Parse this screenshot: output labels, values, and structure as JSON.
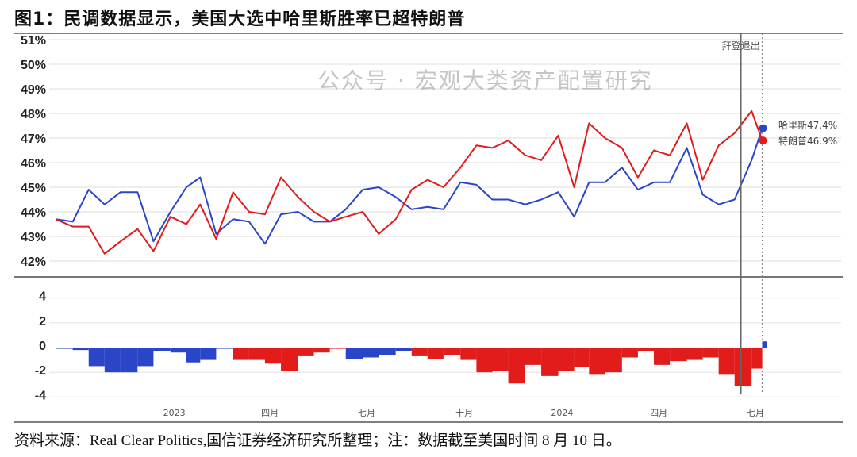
{
  "title": "图1：民调数据显示，美国大选中哈里斯胜率已超特朗普",
  "source": "资料来源：Real Clear Politics,国信证券经济研究所整理；注：数据截至美国时间 8 月 10 日。",
  "watermark": "公众号 · 宏观大类资产配置研究",
  "chart_data": [
    {
      "type": "line",
      "ylim": [
        42,
        51
      ],
      "yticks": [
        "51%",
        "50%",
        "49%",
        "48%",
        "47%",
        "46%",
        "45%",
        "44%",
        "43%",
        "42%"
      ],
      "ytick_values": [
        51,
        50,
        49,
        48,
        47,
        46,
        45,
        44,
        43,
        42
      ],
      "grid": true,
      "colors": {
        "harris": "#2b45c8",
        "trump": "#e21b1b"
      },
      "x": [
        "2022-10-15",
        "2022-10-31",
        "2022-11-15",
        "2022-11-30",
        "2022-12-15",
        "2022-12-31",
        "2023-01-15",
        "2023-01-31",
        "2023-02-15",
        "2023-02-28",
        "2023-03-15",
        "2023-03-31",
        "2023-04-15",
        "2023-04-30",
        "2023-05-15",
        "2023-05-31",
        "2023-06-15",
        "2023-06-30",
        "2023-07-15",
        "2023-07-31",
        "2023-08-15",
        "2023-08-31",
        "2023-09-15",
        "2023-09-30",
        "2023-10-15",
        "2023-10-31",
        "2023-11-15",
        "2023-11-30",
        "2023-12-15",
        "2023-12-31",
        "2024-01-15",
        "2024-01-31",
        "2024-02-15",
        "2024-02-29",
        "2024-03-15",
        "2024-03-31",
        "2024-04-15",
        "2024-04-30",
        "2024-05-15",
        "2024-05-31",
        "2024-06-15",
        "2024-06-30",
        "2024-07-15",
        "2024-07-31",
        "2024-08-10"
      ],
      "series": [
        {
          "key": "harris",
          "values": [
            43.7,
            43.6,
            44.9,
            44.3,
            44.8,
            44.8,
            42.8,
            44.0,
            45.0,
            45.4,
            43.1,
            43.7,
            43.6,
            42.7,
            43.9,
            44.0,
            43.6,
            43.6,
            44.1,
            44.9,
            45.0,
            44.6,
            44.1,
            44.2,
            44.1,
            45.2,
            45.1,
            44.5,
            44.5,
            44.3,
            44.5,
            44.8,
            43.8,
            45.2,
            45.2,
            45.8,
            44.9,
            45.2,
            45.2,
            46.6,
            44.7,
            44.3,
            44.5,
            46.1,
            47.4
          ]
        },
        {
          "key": "trump",
          "values": [
            43.7,
            43.4,
            43.4,
            42.3,
            42.8,
            43.3,
            42.4,
            43.8,
            43.5,
            44.3,
            42.9,
            44.8,
            44.0,
            43.9,
            45.4,
            44.6,
            44.0,
            43.6,
            43.8,
            44.0,
            43.1,
            43.7,
            44.9,
            45.3,
            45.0,
            45.8,
            46.7,
            46.6,
            46.9,
            46.3,
            46.1,
            47.1,
            45.0,
            47.6,
            47.0,
            46.6,
            45.4,
            46.5,
            46.3,
            47.6,
            45.3,
            46.7,
            47.2,
            48.1,
            46.9
          ]
        }
      ],
      "end_labels": [
        {
          "key": "harris",
          "text": "哈里斯47.4%"
        },
        {
          "key": "trump",
          "text": "特朗普46.9%"
        }
      ],
      "events": [
        {
          "date": "2024-07-21",
          "label": "拜登退出",
          "style": "solid"
        },
        {
          "date": "2024-08-10",
          "label": "",
          "style": "dotted"
        }
      ]
    },
    {
      "type": "bar",
      "ylim": [
        -4,
        4
      ],
      "yticks": [
        "4",
        "2",
        "0",
        "-2",
        "-4"
      ],
      "ytick_values": [
        4,
        2,
        0,
        -2,
        -4
      ],
      "xticks": [
        {
          "date": "2023-01-01",
          "label": "2023"
        },
        {
          "date": "2023-04-01",
          "label": "四月"
        },
        {
          "date": "2023-07-01",
          "label": "七月"
        },
        {
          "date": "2023-10-01",
          "label": "十月"
        },
        {
          "date": "2024-01-01",
          "label": "2024"
        },
        {
          "date": "2024-04-01",
          "label": "四月"
        },
        {
          "date": "2024-07-01",
          "label": "七月"
        }
      ],
      "values": [
        -0.1,
        -0.2,
        -1.5,
        -2.0,
        -2.0,
        -1.5,
        -0.3,
        -0.4,
        -1.2,
        -1.0,
        -0.1,
        -1.0,
        -1.0,
        -1.3,
        -1.9,
        -0.7,
        -0.4,
        -0.1,
        -0.9,
        -0.8,
        -0.6,
        -0.3,
        -0.7,
        -0.9,
        -0.6,
        -1.0,
        -2.0,
        -1.9,
        -2.9,
        -1.4,
        -2.3,
        -1.9,
        -1.6,
        -2.2,
        -2.0,
        -0.8,
        -0.3,
        -1.4,
        -1.1,
        -1.0,
        -0.8,
        -2.2,
        -3.1,
        -1.7,
        0.5
      ],
      "leader": [
        "harris",
        "harris",
        "harris",
        "harris",
        "harris",
        "harris",
        "harris",
        "harris",
        "harris",
        "harris",
        "harris",
        "trump",
        "trump",
        "trump",
        "trump",
        "trump",
        "trump",
        "trump",
        "harris",
        "harris",
        "harris",
        "harris",
        "trump",
        "trump",
        "trump",
        "trump",
        "trump",
        "trump",
        "trump",
        "trump",
        "trump",
        "trump",
        "trump",
        "trump",
        "trump",
        "trump",
        "trump",
        "trump",
        "trump",
        "trump",
        "trump",
        "trump",
        "trump",
        "trump",
        "harris"
      ]
    }
  ]
}
